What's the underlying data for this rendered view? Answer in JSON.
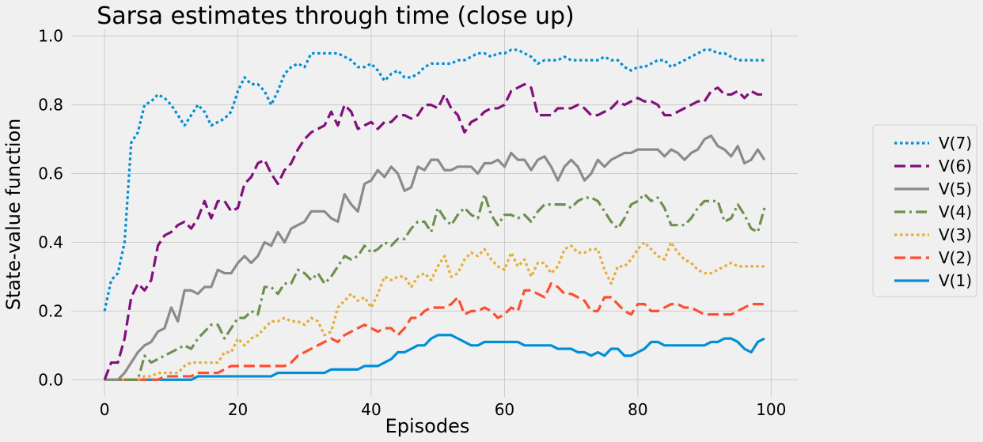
{
  "chart_data": {
    "type": "line",
    "title": "Sarsa estimates through time (close up)",
    "xlabel": "Episodes",
    "ylabel": "State-value function",
    "xlim": [
      -5,
      104
    ],
    "ylim": [
      -0.05,
      1.02
    ],
    "xticks": [
      0,
      20,
      40,
      60,
      80,
      100
    ],
    "xtick_labels": [
      "0",
      "20",
      "40",
      "60",
      "80",
      "100"
    ],
    "yticks": [
      0.0,
      0.2,
      0.4,
      0.6,
      0.8,
      1.0
    ],
    "ytick_labels": [
      "0.0",
      "0.2",
      "0.4",
      "0.6",
      "0.8",
      "1.0"
    ],
    "grid": true,
    "legend_position": "right",
    "x": [
      0,
      1,
      2,
      3,
      4,
      5,
      6,
      7,
      8,
      9,
      10,
      11,
      12,
      13,
      14,
      15,
      16,
      17,
      18,
      19,
      20,
      21,
      22,
      23,
      24,
      25,
      26,
      27,
      28,
      29,
      30,
      31,
      32,
      33,
      34,
      35,
      36,
      37,
      38,
      39,
      40,
      41,
      42,
      43,
      44,
      45,
      46,
      47,
      48,
      49,
      50,
      51,
      52,
      53,
      54,
      55,
      56,
      57,
      58,
      59,
      60,
      61,
      62,
      63,
      64,
      65,
      66,
      67,
      68,
      69,
      70,
      71,
      72,
      73,
      74,
      75,
      76,
      77,
      78,
      79,
      80,
      81,
      82,
      83,
      84,
      85,
      86,
      87,
      88,
      89,
      90,
      91,
      92,
      93,
      94,
      95,
      96,
      97,
      98,
      99
    ],
    "series": [
      {
        "name": "V(7)",
        "color": "#008fd5",
        "dash": "dotted",
        "values": [
          0.2,
          0.29,
          0.31,
          0.4,
          0.69,
          0.72,
          0.8,
          0.81,
          0.83,
          0.82,
          0.8,
          0.77,
          0.74,
          0.77,
          0.8,
          0.78,
          0.74,
          0.75,
          0.76,
          0.78,
          0.84,
          0.88,
          0.86,
          0.86,
          0.84,
          0.8,
          0.84,
          0.89,
          0.91,
          0.92,
          0.91,
          0.95,
          0.95,
          0.95,
          0.95,
          0.95,
          0.94,
          0.93,
          0.91,
          0.91,
          0.92,
          0.9,
          0.87,
          0.89,
          0.9,
          0.88,
          0.88,
          0.89,
          0.91,
          0.92,
          0.92,
          0.92,
          0.92,
          0.93,
          0.93,
          0.94,
          0.95,
          0.95,
          0.94,
          0.95,
          0.95,
          0.96,
          0.96,
          0.95,
          0.94,
          0.92,
          0.93,
          0.93,
          0.93,
          0.94,
          0.93,
          0.93,
          0.93,
          0.93,
          0.93,
          0.94,
          0.93,
          0.93,
          0.91,
          0.9,
          0.91,
          0.91,
          0.92,
          0.93,
          0.93,
          0.91,
          0.92,
          0.93,
          0.94,
          0.95,
          0.96,
          0.96,
          0.95,
          0.95,
          0.94,
          0.93,
          0.93,
          0.93,
          0.93,
          0.93
        ]
      },
      {
        "name": "V(6)",
        "color": "#810f7c",
        "dash": "dashed",
        "values": [
          0.0,
          0.05,
          0.05,
          0.12,
          0.24,
          0.28,
          0.26,
          0.29,
          0.39,
          0.42,
          0.43,
          0.45,
          0.46,
          0.44,
          0.47,
          0.52,
          0.47,
          0.52,
          0.52,
          0.49,
          0.5,
          0.57,
          0.59,
          0.63,
          0.64,
          0.6,
          0.57,
          0.61,
          0.63,
          0.67,
          0.7,
          0.72,
          0.73,
          0.74,
          0.78,
          0.74,
          0.8,
          0.78,
          0.73,
          0.74,
          0.75,
          0.73,
          0.75,
          0.75,
          0.77,
          0.77,
          0.76,
          0.77,
          0.8,
          0.8,
          0.79,
          0.83,
          0.79,
          0.77,
          0.72,
          0.75,
          0.76,
          0.78,
          0.79,
          0.79,
          0.8,
          0.84,
          0.85,
          0.86,
          0.85,
          0.77,
          0.77,
          0.77,
          0.79,
          0.79,
          0.79,
          0.8,
          0.79,
          0.77,
          0.77,
          0.78,
          0.79,
          0.81,
          0.8,
          0.81,
          0.82,
          0.81,
          0.81,
          0.8,
          0.77,
          0.77,
          0.78,
          0.79,
          0.8,
          0.81,
          0.81,
          0.84,
          0.85,
          0.83,
          0.83,
          0.84,
          0.82,
          0.84,
          0.83,
          0.83
        ]
      },
      {
        "name": "V(5)",
        "color": "#8b8b8b",
        "dash": "solid",
        "values": [
          0.0,
          0.0,
          0.0,
          0.02,
          0.05,
          0.08,
          0.1,
          0.11,
          0.14,
          0.15,
          0.21,
          0.17,
          0.26,
          0.26,
          0.25,
          0.27,
          0.27,
          0.32,
          0.31,
          0.31,
          0.34,
          0.36,
          0.34,
          0.36,
          0.4,
          0.39,
          0.43,
          0.4,
          0.44,
          0.45,
          0.46,
          0.49,
          0.49,
          0.49,
          0.47,
          0.46,
          0.54,
          0.51,
          0.49,
          0.57,
          0.58,
          0.61,
          0.59,
          0.62,
          0.6,
          0.55,
          0.56,
          0.62,
          0.61,
          0.64,
          0.64,
          0.61,
          0.61,
          0.62,
          0.62,
          0.62,
          0.6,
          0.63,
          0.63,
          0.64,
          0.62,
          0.66,
          0.64,
          0.64,
          0.61,
          0.64,
          0.65,
          0.62,
          0.58,
          0.62,
          0.64,
          0.62,
          0.58,
          0.6,
          0.64,
          0.62,
          0.64,
          0.65,
          0.66,
          0.66,
          0.67,
          0.67,
          0.67,
          0.67,
          0.65,
          0.67,
          0.66,
          0.64,
          0.66,
          0.67,
          0.7,
          0.71,
          0.68,
          0.67,
          0.65,
          0.68,
          0.63,
          0.64,
          0.67,
          0.64
        ]
      },
      {
        "name": "V(4)",
        "color": "#6d904f",
        "dash": "dashdot",
        "values": [
          0.0,
          0.0,
          0.0,
          0.0,
          0.0,
          0.0,
          0.07,
          0.05,
          0.06,
          0.07,
          0.08,
          0.09,
          0.1,
          0.09,
          0.12,
          0.14,
          0.16,
          0.16,
          0.12,
          0.15,
          0.18,
          0.18,
          0.2,
          0.19,
          0.27,
          0.27,
          0.25,
          0.28,
          0.28,
          0.32,
          0.31,
          0.29,
          0.31,
          0.28,
          0.3,
          0.33,
          0.36,
          0.35,
          0.36,
          0.39,
          0.37,
          0.38,
          0.4,
          0.39,
          0.41,
          0.41,
          0.44,
          0.46,
          0.46,
          0.43,
          0.5,
          0.47,
          0.45,
          0.48,
          0.5,
          0.48,
          0.47,
          0.54,
          0.48,
          0.45,
          0.48,
          0.48,
          0.47,
          0.48,
          0.46,
          0.49,
          0.51,
          0.51,
          0.51,
          0.51,
          0.5,
          0.52,
          0.53,
          0.53,
          0.52,
          0.49,
          0.46,
          0.44,
          0.47,
          0.51,
          0.52,
          0.54,
          0.52,
          0.53,
          0.5,
          0.45,
          0.45,
          0.45,
          0.47,
          0.5,
          0.52,
          0.52,
          0.52,
          0.46,
          0.47,
          0.51,
          0.48,
          0.44,
          0.43,
          0.5
        ]
      },
      {
        "name": "V(3)",
        "color": "#e5ae38",
        "dash": "dotted",
        "values": [
          0.0,
          0.0,
          0.0,
          0.0,
          0.0,
          0.0,
          0.01,
          0.01,
          0.02,
          0.02,
          0.02,
          0.02,
          0.04,
          0.05,
          0.05,
          0.05,
          0.05,
          0.05,
          0.08,
          0.08,
          0.12,
          0.1,
          0.12,
          0.13,
          0.15,
          0.17,
          0.17,
          0.18,
          0.17,
          0.17,
          0.16,
          0.18,
          0.17,
          0.13,
          0.14,
          0.21,
          0.23,
          0.25,
          0.23,
          0.24,
          0.21,
          0.25,
          0.3,
          0.29,
          0.3,
          0.3,
          0.27,
          0.3,
          0.31,
          0.29,
          0.33,
          0.36,
          0.3,
          0.31,
          0.35,
          0.37,
          0.36,
          0.38,
          0.35,
          0.33,
          0.32,
          0.37,
          0.33,
          0.35,
          0.3,
          0.34,
          0.34,
          0.31,
          0.33,
          0.38,
          0.39,
          0.37,
          0.37,
          0.38,
          0.38,
          0.32,
          0.28,
          0.33,
          0.33,
          0.35,
          0.38,
          0.4,
          0.38,
          0.36,
          0.35,
          0.4,
          0.37,
          0.35,
          0.34,
          0.32,
          0.31,
          0.31,
          0.32,
          0.33,
          0.34,
          0.33,
          0.33,
          0.33,
          0.33,
          0.33
        ]
      },
      {
        "name": "V(2)",
        "color": "#fc4f30",
        "dash": "dashed",
        "values": [
          0.0,
          0.0,
          0.0,
          0.0,
          0.0,
          0.0,
          0.0,
          0.0,
          0.0,
          0.01,
          0.01,
          0.01,
          0.01,
          0.01,
          0.02,
          0.02,
          0.02,
          0.02,
          0.03,
          0.04,
          0.04,
          0.04,
          0.04,
          0.04,
          0.04,
          0.04,
          0.04,
          0.04,
          0.05,
          0.07,
          0.08,
          0.09,
          0.1,
          0.11,
          0.12,
          0.11,
          0.13,
          0.14,
          0.15,
          0.16,
          0.15,
          0.14,
          0.15,
          0.15,
          0.13,
          0.15,
          0.18,
          0.18,
          0.2,
          0.21,
          0.21,
          0.21,
          0.22,
          0.24,
          0.19,
          0.2,
          0.2,
          0.21,
          0.2,
          0.18,
          0.19,
          0.21,
          0.2,
          0.26,
          0.26,
          0.25,
          0.24,
          0.28,
          0.27,
          0.25,
          0.25,
          0.24,
          0.23,
          0.2,
          0.2,
          0.24,
          0.24,
          0.22,
          0.2,
          0.19,
          0.22,
          0.22,
          0.2,
          0.2,
          0.21,
          0.22,
          0.22,
          0.21,
          0.21,
          0.2,
          0.19,
          0.19,
          0.19,
          0.19,
          0.19,
          0.2,
          0.21,
          0.22,
          0.22,
          0.22
        ]
      },
      {
        "name": "V(1)",
        "color": "#008fd5",
        "dash": "solid",
        "values": [
          0.0,
          0.0,
          0.0,
          0.0,
          0.0,
          0.0,
          0.0,
          0.0,
          0.0,
          0.0,
          0.0,
          0.0,
          0.0,
          0.0,
          0.01,
          0.01,
          0.01,
          0.01,
          0.01,
          0.01,
          0.01,
          0.01,
          0.01,
          0.01,
          0.01,
          0.01,
          0.02,
          0.02,
          0.02,
          0.02,
          0.02,
          0.02,
          0.02,
          0.02,
          0.03,
          0.03,
          0.03,
          0.03,
          0.03,
          0.04,
          0.04,
          0.04,
          0.05,
          0.06,
          0.08,
          0.08,
          0.09,
          0.1,
          0.1,
          0.12,
          0.13,
          0.13,
          0.13,
          0.12,
          0.11,
          0.1,
          0.1,
          0.11,
          0.11,
          0.11,
          0.11,
          0.11,
          0.11,
          0.1,
          0.1,
          0.1,
          0.1,
          0.1,
          0.09,
          0.09,
          0.09,
          0.08,
          0.08,
          0.07,
          0.08,
          0.07,
          0.09,
          0.09,
          0.07,
          0.07,
          0.08,
          0.09,
          0.11,
          0.11,
          0.1,
          0.1,
          0.1,
          0.1,
          0.1,
          0.1,
          0.1,
          0.11,
          0.11,
          0.12,
          0.12,
          0.11,
          0.09,
          0.08,
          0.11,
          0.12
        ]
      }
    ]
  }
}
